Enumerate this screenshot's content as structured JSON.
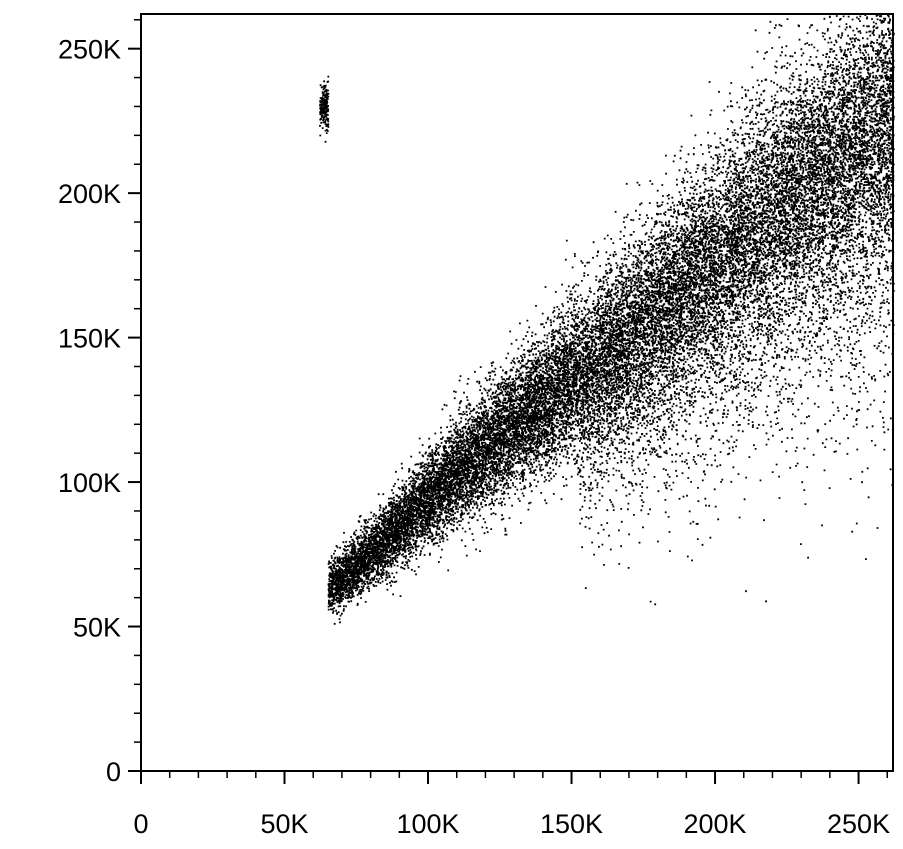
{
  "chart_data": {
    "type": "scatter",
    "title": "",
    "xlabel": "",
    "ylabel": "",
    "xlim": [
      0,
      262000
    ],
    "ylim": [
      0,
      262000
    ],
    "x_ticks": [
      0,
      50000,
      100000,
      150000,
      200000,
      250000
    ],
    "y_ticks": [
      0,
      50000,
      100000,
      150000,
      200000,
      250000
    ],
    "x_tick_labels": [
      "0",
      "50K",
      "100K",
      "150K",
      "200K",
      "250K"
    ],
    "y_tick_labels": [
      "0",
      "50K",
      "100K",
      "150K",
      "200K",
      "250K"
    ],
    "minor_tick_step": 10000,
    "grid": false,
    "legend": "none",
    "point_color": "#000000",
    "series": [
      {
        "density_trend": [
          {
            "x": 65000,
            "y": 63000
          },
          {
            "x": 85000,
            "y": 80000
          },
          {
            "x": 100000,
            "y": 95000
          },
          {
            "x": 120000,
            "y": 112000
          },
          {
            "x": 140000,
            "y": 128000
          },
          {
            "x": 160000,
            "y": 145000
          },
          {
            "x": 180000,
            "y": 163000
          },
          {
            "x": 200000,
            "y": 180000
          },
          {
            "x": 220000,
            "y": 197000
          },
          {
            "x": 240000,
            "y": 213000
          },
          {
            "x": 260000,
            "y": 230000
          }
        ]
      }
    ]
  }
}
